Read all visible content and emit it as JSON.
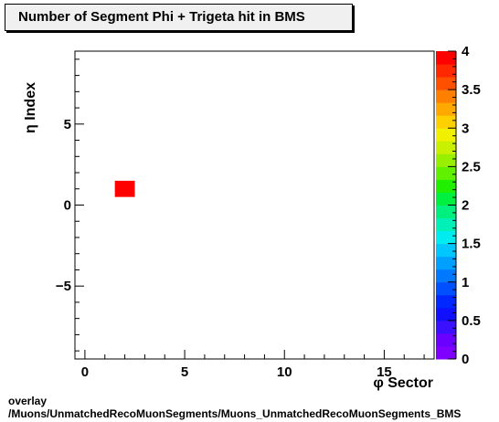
{
  "title": "Number of Segment Phi + Trigeta hit in BMS",
  "footer": {
    "line1": "overlay",
    "line2": "/Muons/UnmatchedRecoMuonSegments/Muons_UnmatchedRecoMuonSegments_BMS"
  },
  "chart_data": {
    "type": "heatmap",
    "title": "Number of Segment Phi + Trigeta hit in BMS",
    "xlabel": "φ Sector",
    "ylabel": "η Index",
    "xlim": [
      -0.5,
      17.5
    ],
    "ylim": [
      -9.5,
      9.5
    ],
    "x_ticks": [
      0,
      5,
      10,
      15
    ],
    "y_ticks": [
      -5,
      0,
      5
    ],
    "cells": [
      {
        "x": 2,
        "y": 1,
        "value": 4
      }
    ],
    "colorbar": {
      "min": 0,
      "max": 4,
      "ticks": [
        "0",
        "0.5",
        "1",
        "1.5",
        "2",
        "2.5",
        "3",
        "3.5",
        "4"
      ],
      "colors": [
        "#7f00ff",
        "#6a00ff",
        "#3a10ff",
        "#1010ff",
        "#0028ff",
        "#0050ff",
        "#0078ff",
        "#00a0ff",
        "#00c8ff",
        "#00ecf0",
        "#00f0b8",
        "#00f080",
        "#00f040",
        "#20f000",
        "#60f000",
        "#98f000",
        "#c8f000",
        "#f0f000",
        "#ffd000",
        "#ffa800",
        "#ff8000",
        "#ff5000",
        "#ff2800",
        "#ff0000"
      ]
    },
    "grid": false,
    "legend": "none"
  }
}
